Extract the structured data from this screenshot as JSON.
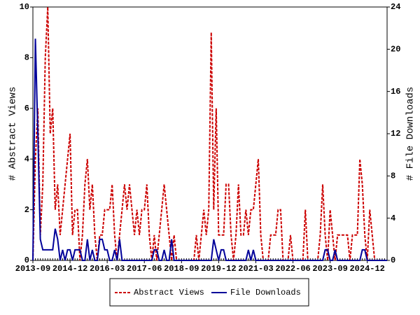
{
  "chart_data": {
    "type": "line",
    "categories": [
      "2013-09",
      null,
      null,
      null,
      null,
      null,
      null,
      null,
      null,
      null,
      null,
      null,
      null,
      null,
      null,
      "2014-12",
      null,
      null,
      null,
      null,
      null,
      null,
      null,
      null,
      null,
      null,
      null,
      null,
      null,
      null,
      "2016-03",
      null,
      null,
      null,
      null,
      null,
      null,
      null,
      null,
      null,
      null,
      null,
      null,
      null,
      null,
      "2017-06",
      null,
      null,
      null,
      null,
      null,
      null,
      null,
      null,
      null,
      null,
      null,
      null,
      null,
      null,
      "2018-09",
      null,
      null,
      null,
      null,
      null,
      null,
      null,
      null,
      null,
      null,
      null,
      null,
      null,
      null,
      "2019-12",
      null,
      null,
      null,
      null,
      null,
      null,
      null,
      null,
      null,
      null,
      null,
      null,
      null,
      null,
      "2021-03",
      null,
      null,
      null,
      null,
      null,
      null,
      null,
      null,
      null,
      null,
      null,
      null,
      null,
      null,
      "2022-06",
      null,
      null,
      null,
      null,
      null,
      null,
      null,
      null,
      null,
      null,
      null,
      null,
      null,
      null,
      "2023-09",
      null,
      null,
      null,
      null,
      null,
      null,
      null,
      null,
      null,
      null,
      null,
      null,
      null,
      null,
      "2024-12",
      null,
      null,
      null,
      null,
      null,
      null,
      null,
      null
    ],
    "series": [
      {
        "name": "Abstract Views",
        "color": "#cc0000",
        "dash": true,
        "axis": "y",
        "values": [
          0,
          4,
          6,
          1,
          3,
          8,
          10,
          5,
          6,
          2,
          3,
          1,
          2,
          3,
          4,
          5,
          1,
          2,
          2,
          0,
          1,
          3,
          4,
          2,
          3,
          1,
          0,
          1,
          1,
          2,
          2,
          2,
          3,
          1,
          0,
          1,
          2,
          3,
          2,
          3,
          2,
          1,
          2,
          1,
          2,
          2,
          3,
          1,
          0,
          1,
          0,
          1,
          2,
          3,
          2,
          1,
          0,
          1,
          0,
          0,
          0,
          0,
          0,
          0,
          0,
          0,
          1,
          0,
          1,
          2,
          1,
          2,
          9,
          2,
          6,
          1,
          1,
          1,
          3,
          3,
          1,
          0,
          1,
          3,
          1,
          1,
          2,
          1,
          2,
          2,
          3,
          4,
          1,
          0,
          0,
          0,
          1,
          1,
          1,
          2,
          2,
          0,
          0,
          0,
          1,
          0,
          0,
          0,
          0,
          0,
          2,
          0,
          0,
          0,
          0,
          0,
          1,
          3,
          1,
          0,
          2,
          1,
          0,
          1,
          1,
          1,
          1,
          1,
          0,
          1,
          1,
          1,
          4,
          3,
          1,
          0,
          2,
          1,
          0,
          0,
          0,
          0,
          0,
          0
        ]
      },
      {
        "name": "File Downloads",
        "color": "#000099",
        "dash": false,
        "axis": "y2",
        "values": [
          0,
          21,
          12,
          2,
          1,
          1,
          1,
          1,
          1,
          3,
          2,
          0,
          1,
          0,
          1,
          1,
          0,
          1,
          1,
          1,
          0,
          0,
          2,
          0,
          1,
          0,
          0,
          2,
          2,
          1,
          1,
          0,
          0,
          1,
          0,
          2,
          0,
          0,
          0,
          0,
          0,
          0,
          0,
          0,
          0,
          0,
          0,
          0,
          0,
          1,
          1,
          0,
          0,
          1,
          0,
          0,
          2,
          0,
          0,
          0,
          0,
          0,
          0,
          0,
          0,
          0,
          0,
          0,
          0,
          0,
          0,
          0,
          0,
          2,
          1,
          0,
          1,
          1,
          0,
          0,
          0,
          0,
          0,
          0,
          0,
          0,
          0,
          1,
          0,
          1,
          0,
          0,
          0,
          0,
          0,
          0,
          0,
          0,
          0,
          0,
          0,
          0,
          0,
          0,
          0,
          0,
          0,
          0,
          0,
          0,
          0,
          0,
          0,
          0,
          0,
          0,
          0,
          0,
          1,
          1,
          0,
          0,
          1,
          0,
          0,
          0,
          0,
          0,
          0,
          0,
          0,
          0,
          0,
          1,
          1,
          0,
          0,
          0,
          0,
          0,
          0,
          0,
          0,
          0
        ]
      }
    ],
    "ylabel": "# Abstract Views",
    "y2label": "# File Downloads",
    "ylim": [
      0,
      10
    ],
    "yticks": [
      0,
      2,
      4,
      6,
      8,
      10
    ],
    "y2lim": [
      0,
      24
    ],
    "y2ticks": [
      0,
      4,
      8,
      12,
      16,
      20,
      24
    ],
    "legend": "bottom"
  }
}
